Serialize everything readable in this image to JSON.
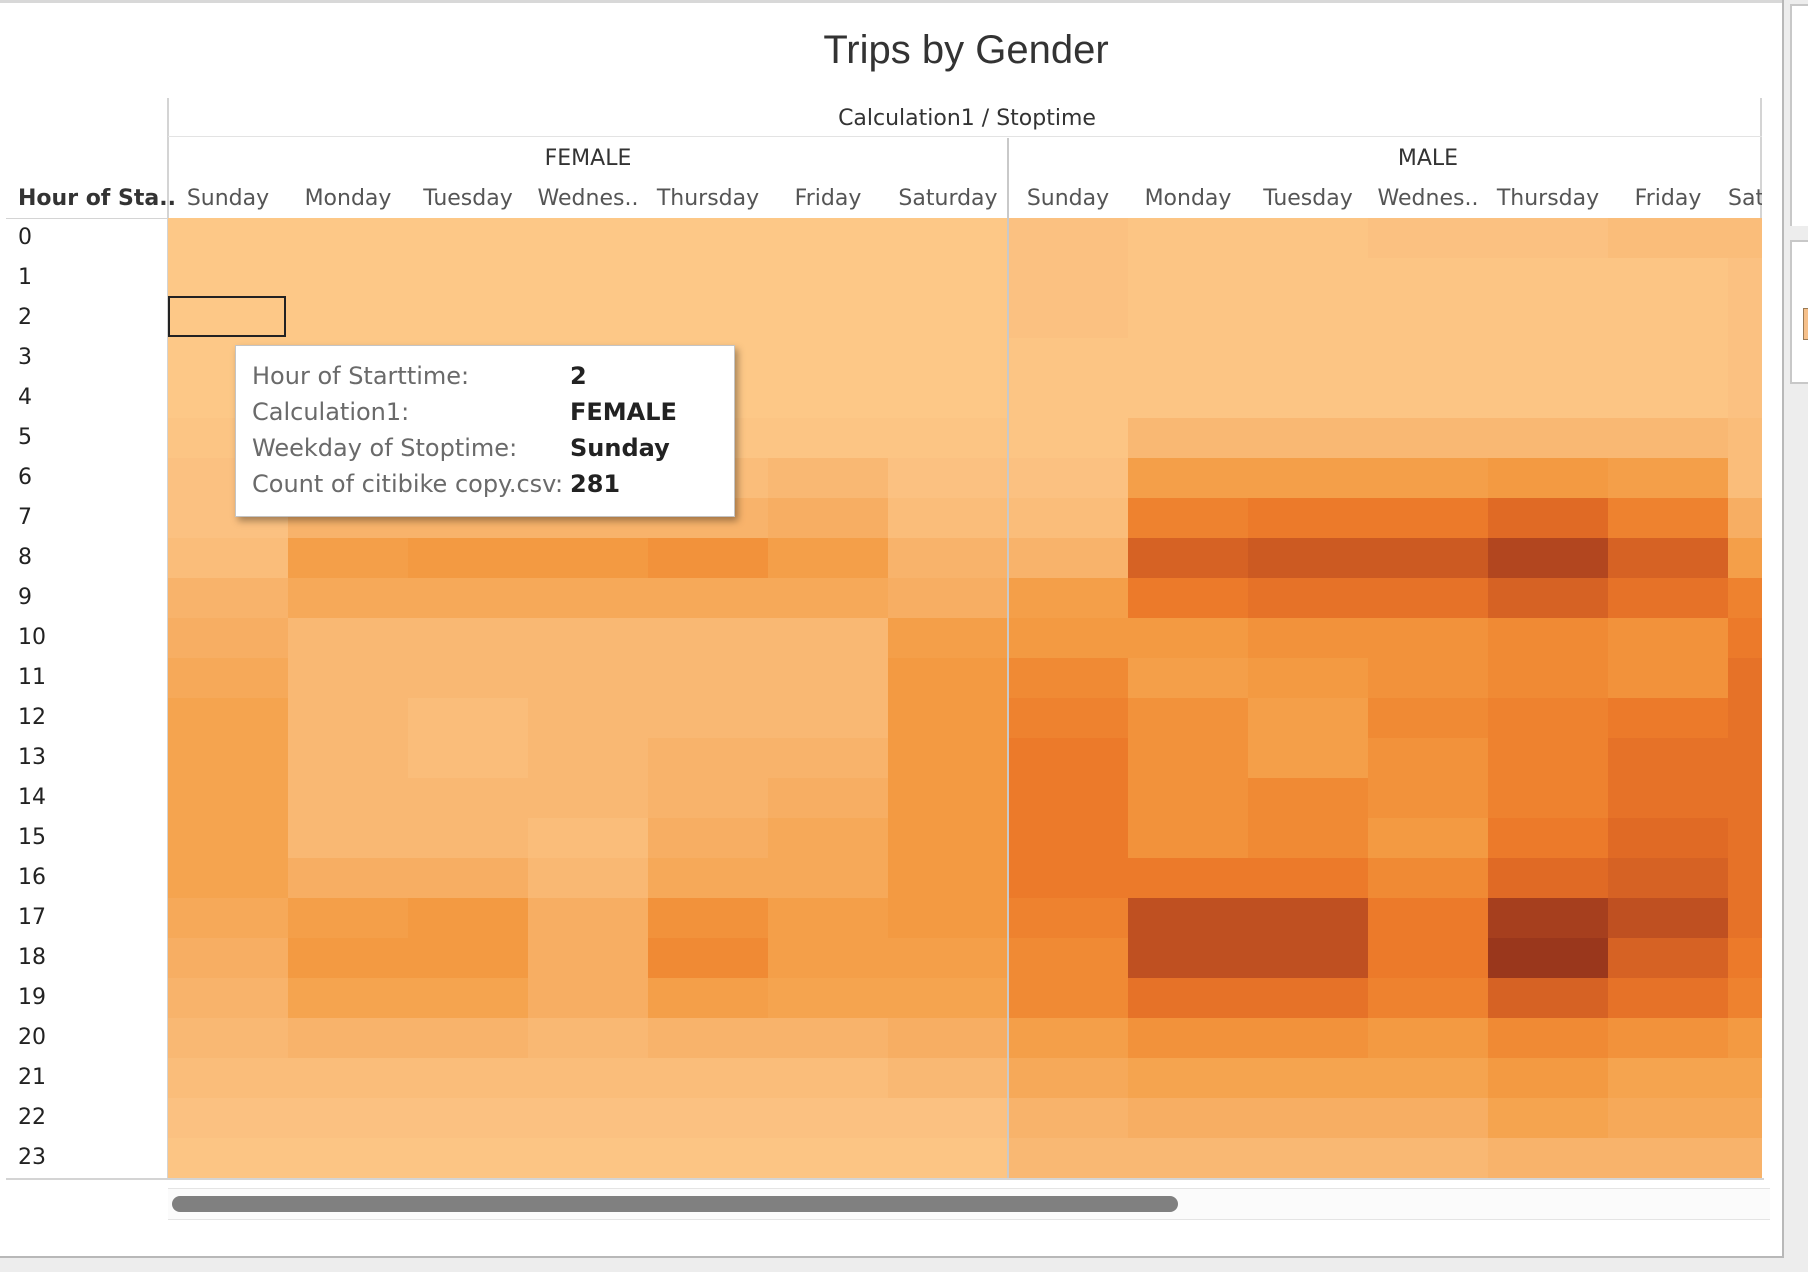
{
  "chart_data": {
    "type": "heatmap",
    "title": "Trips by Gender",
    "column_field": "Calculation1 / Stoptime",
    "row_field": "Hour of Sta..",
    "groups": [
      {
        "name": "FEMALE",
        "days": [
          "Sunday",
          "Monday",
          "Tuesday",
          "Wednes..",
          "Thursday",
          "Friday",
          "Saturday"
        ]
      },
      {
        "name": "MALE",
        "days": [
          "Sunday",
          "Monday",
          "Tuesday",
          "Wednes..",
          "Thursday",
          "Friday",
          "Sat"
        ]
      }
    ],
    "rows": [
      "0",
      "1",
      "2",
      "3",
      "4",
      "5",
      "6",
      "7",
      "8",
      "9",
      "10",
      "11",
      "12",
      "13",
      "14",
      "15",
      "16",
      "17",
      "18",
      "19",
      "20",
      "21",
      "22",
      "23"
    ],
    "value_encoding": "relative color intensity 0-10 estimated from the orange shading (exact counts are not printed except in the tooltip)",
    "color_scale": [
      "#fdc887",
      "#fbc181",
      "#f9b873",
      "#f7ae63",
      "#f5a44f",
      "#f39a42",
      "#f08a34",
      "#ec7a2a",
      "#e06a25",
      "#cc5a22",
      "#b2461f",
      "#9a371c"
    ],
    "intensity": {
      "FEMALE": [
        [
          0,
          0,
          0,
          0,
          0,
          0,
          0
        ],
        [
          0,
          0,
          0,
          0,
          0,
          0,
          0
        ],
        [
          0,
          0,
          0,
          0,
          0,
          0,
          0
        ],
        [
          0,
          0,
          0,
          0,
          0,
          0,
          0
        ],
        [
          0,
          0,
          0,
          0,
          0,
          0,
          0
        ],
        [
          0.5,
          0.5,
          0.5,
          0.5,
          0.5,
          0.5,
          0.5
        ],
        [
          1,
          1.5,
          1.5,
          1.5,
          1.5,
          2,
          1
        ],
        [
          1,
          2.5,
          2.5,
          2.5,
          2.5,
          3,
          1.5
        ],
        [
          1.5,
          4.5,
          5,
          5,
          5.5,
          4.5,
          2.5
        ],
        [
          2.5,
          3.5,
          3.5,
          3.5,
          3.5,
          3.5,
          3
        ],
        [
          3,
          2,
          2,
          2,
          2,
          2,
          4.5
        ],
        [
          3.5,
          2,
          2,
          2,
          2,
          2,
          5
        ],
        [
          4,
          2,
          1.5,
          2,
          2,
          2,
          5
        ],
        [
          4,
          2,
          1.5,
          2,
          2.5,
          2.5,
          5
        ],
        [
          4,
          2,
          2,
          2,
          2.5,
          3,
          5
        ],
        [
          4,
          2,
          2,
          1.5,
          3,
          3.5,
          5
        ],
        [
          4,
          3,
          3,
          2,
          3.5,
          3.5,
          5
        ],
        [
          3.5,
          4.5,
          5,
          3,
          5.5,
          4.5,
          5
        ],
        [
          3,
          5,
          5,
          3,
          6,
          4.5,
          4.5
        ],
        [
          2.5,
          4,
          4,
          3,
          4.5,
          4,
          4
        ],
        [
          2,
          2.5,
          2.5,
          2,
          2.5,
          2.5,
          3
        ],
        [
          1.5,
          1.5,
          1.5,
          1.5,
          1.5,
          1.5,
          2
        ],
        [
          1,
          1,
          1,
          1,
          1,
          1,
          1
        ],
        [
          0.5,
          0.5,
          0.5,
          0.5,
          0.5,
          0.5,
          0.5
        ]
      ],
      "MALE": [
        [
          1,
          0.5,
          0.5,
          1,
          1,
          1.5,
          1.5
        ],
        [
          1,
          0.5,
          0.5,
          0.5,
          0.5,
          0.5,
          1
        ],
        [
          1,
          0.5,
          0.5,
          0.5,
          0.5,
          0.5,
          1
        ],
        [
          0.5,
          0.5,
          0.5,
          0.5,
          0.5,
          0.5,
          1
        ],
        [
          0.5,
          0.5,
          0.5,
          0.5,
          0.5,
          0.5,
          1
        ],
        [
          0.5,
          2,
          2,
          2,
          2,
          2,
          1.5
        ],
        [
          1,
          4.5,
          4.5,
          4.5,
          5,
          4.5,
          1.5
        ],
        [
          1.5,
          6.5,
          7,
          7,
          8,
          6.5,
          3
        ],
        [
          2.5,
          8.5,
          9,
          9,
          10,
          8.5,
          4.5
        ],
        [
          4.5,
          7,
          7.5,
          7.5,
          8.5,
          7.5,
          6.5
        ],
        [
          5,
          5,
          5.5,
          5.5,
          6,
          5.5,
          7
        ],
        [
          6,
          4.5,
          5,
          5.5,
          6,
          5.5,
          7.5
        ],
        [
          6.5,
          5.5,
          4.5,
          6,
          6.5,
          7,
          7.5
        ],
        [
          7,
          5.5,
          4.5,
          5.5,
          6.5,
          7.5,
          7.5
        ],
        [
          7,
          5.5,
          6,
          5.5,
          6.5,
          7.5,
          7.5
        ],
        [
          7,
          5.5,
          6,
          5,
          7,
          8,
          7.5
        ],
        [
          7,
          7,
          7,
          6,
          8,
          8.5,
          7.5
        ],
        [
          6.5,
          9.5,
          9.5,
          7,
          10.5,
          9.5,
          7.5
        ],
        [
          6,
          9.5,
          9.5,
          7,
          11,
          8.5,
          7
        ],
        [
          6,
          7.5,
          7.5,
          6.5,
          8.5,
          7.5,
          6.5
        ],
        [
          4.5,
          5.5,
          5.5,
          5,
          6,
          5.5,
          5
        ],
        [
          3.5,
          4,
          4,
          4,
          5,
          4,
          4
        ],
        [
          2.5,
          3,
          3,
          3,
          4,
          3.5,
          3.5
        ],
        [
          2,
          2,
          2,
          2,
          2.5,
          2.5,
          2.5
        ]
      ]
    },
    "selected_cell": {
      "group": "FEMALE",
      "day": "Sunday",
      "hour": "2",
      "count": 281
    }
  },
  "tooltip": {
    "rows": [
      {
        "key": "Hour of Starttime:",
        "value": "2"
      },
      {
        "key": "Calculation1:",
        "value": "FEMALE"
      },
      {
        "key": "Weekday of Stoptime:",
        "value": "Sunday"
      },
      {
        "key": "Count of citibike copy.csv:",
        "value": "281"
      }
    ]
  }
}
